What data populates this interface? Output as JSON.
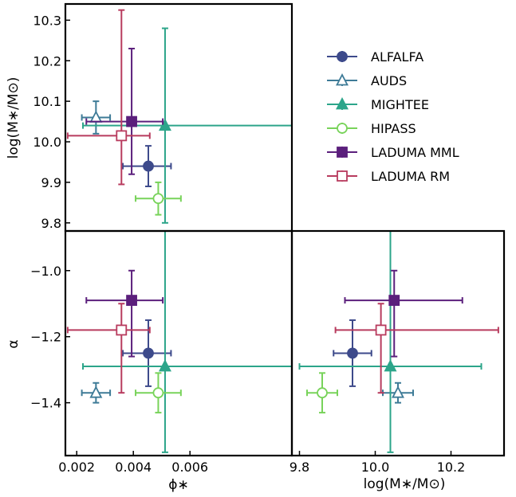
{
  "chart_data": {
    "type": "scatter",
    "description_kind": "corner plot of Schechter function parameters with error bars",
    "parameters": [
      "phi_star",
      "log_Mstar",
      "alpha"
    ],
    "axis_labels": {
      "phi_star": "ϕ∗",
      "log_Mstar": "log(M∗/M⊙)",
      "alpha": "α"
    },
    "axis_ranges": {
      "phi_star": [
        0.0016,
        0.0096
      ],
      "log_Mstar": [
        9.78,
        10.34
      ],
      "alpha": [
        -1.56,
        -0.88
      ]
    },
    "ticks": {
      "phi_star": [
        {
          "value": 0.002,
          "label": "0.002"
        },
        {
          "value": 0.004,
          "label": "0.004"
        },
        {
          "value": 0.006,
          "label": "0.006"
        }
      ],
      "log_Mstar_y": [
        {
          "value": 9.8,
          "label": "9.8"
        },
        {
          "value": 9.9,
          "label": "9.9"
        },
        {
          "value": 10.0,
          "label": "10.0"
        },
        {
          "value": 10.1,
          "label": "10.1"
        },
        {
          "value": 10.2,
          "label": "10.2"
        },
        {
          "value": 10.3,
          "label": "10.3"
        }
      ],
      "log_Mstar_x": [
        {
          "value": 9.8,
          "label": "9.8"
        },
        {
          "value": 10.0,
          "label": "10.0"
        },
        {
          "value": 10.2,
          "label": "10.2"
        }
      ],
      "alpha": [
        {
          "value": -1.0,
          "label": "−1.0"
        },
        {
          "value": -1.2,
          "label": "−1.2"
        },
        {
          "value": -1.4,
          "label": "−1.4"
        }
      ]
    },
    "legend_position": "top-right",
    "series": [
      {
        "name": "ALFALFA",
        "color": "#3d4a8b",
        "marker": "circle",
        "filled": true,
        "phi_star": 0.00453,
        "phi_err": [
          0.0009,
          0.0008
        ],
        "log_Mstar": 9.94,
        "log_Mstar_err": [
          0.05,
          0.05
        ],
        "alpha": -1.25,
        "alpha_err": [
          0.1,
          0.1
        ]
      },
      {
        "name": "AUDS",
        "color": "#3e7b97",
        "marker": "triangle",
        "filled": false,
        "phi_star": 0.00268,
        "phi_err": [
          0.0005,
          0.0005
        ],
        "log_Mstar": 10.06,
        "log_Mstar_err": [
          0.04,
          0.04
        ],
        "alpha": -1.37,
        "alpha_err": [
          0.03,
          0.03
        ]
      },
      {
        "name": "MIGHTEE",
        "color": "#2ca58a",
        "marker": "triangle",
        "filled": true,
        "phi_star": 0.00512,
        "phi_err": [
          0.0029,
          0.0046
        ],
        "log_Mstar": 10.04,
        "log_Mstar_err": [
          0.24,
          0.24
        ],
        "alpha": -1.29,
        "alpha_err": [
          0.26,
          0.41
        ]
      },
      {
        "name": "HIPASS",
        "color": "#78d35a",
        "marker": "circle",
        "filled": false,
        "phi_star": 0.00488,
        "phi_err": [
          0.0008,
          0.0008
        ],
        "log_Mstar": 9.86,
        "log_Mstar_err": [
          0.04,
          0.04
        ],
        "alpha": -1.37,
        "alpha_err": [
          0.06,
          0.06
        ]
      },
      {
        "name": "LADUMA MML",
        "color": "#5b1f7c",
        "marker": "square",
        "filled": true,
        "phi_star": 0.00394,
        "phi_err": [
          0.0016,
          0.0011
        ],
        "log_Mstar": 10.05,
        "log_Mstar_err": [
          0.13,
          0.18
        ],
        "alpha": -1.09,
        "alpha_err": [
          0.17,
          0.09
        ]
      },
      {
        "name": "LADUMA RM",
        "color": "#b83b5e",
        "marker": "square",
        "filled": false,
        "phi_star": 0.00358,
        "phi_err": [
          0.0019,
          0.001
        ],
        "log_Mstar": 10.015,
        "log_Mstar_err": [
          0.12,
          0.31
        ],
        "alpha": -1.18,
        "alpha_err": [
          0.19,
          0.08
        ]
      }
    ]
  }
}
